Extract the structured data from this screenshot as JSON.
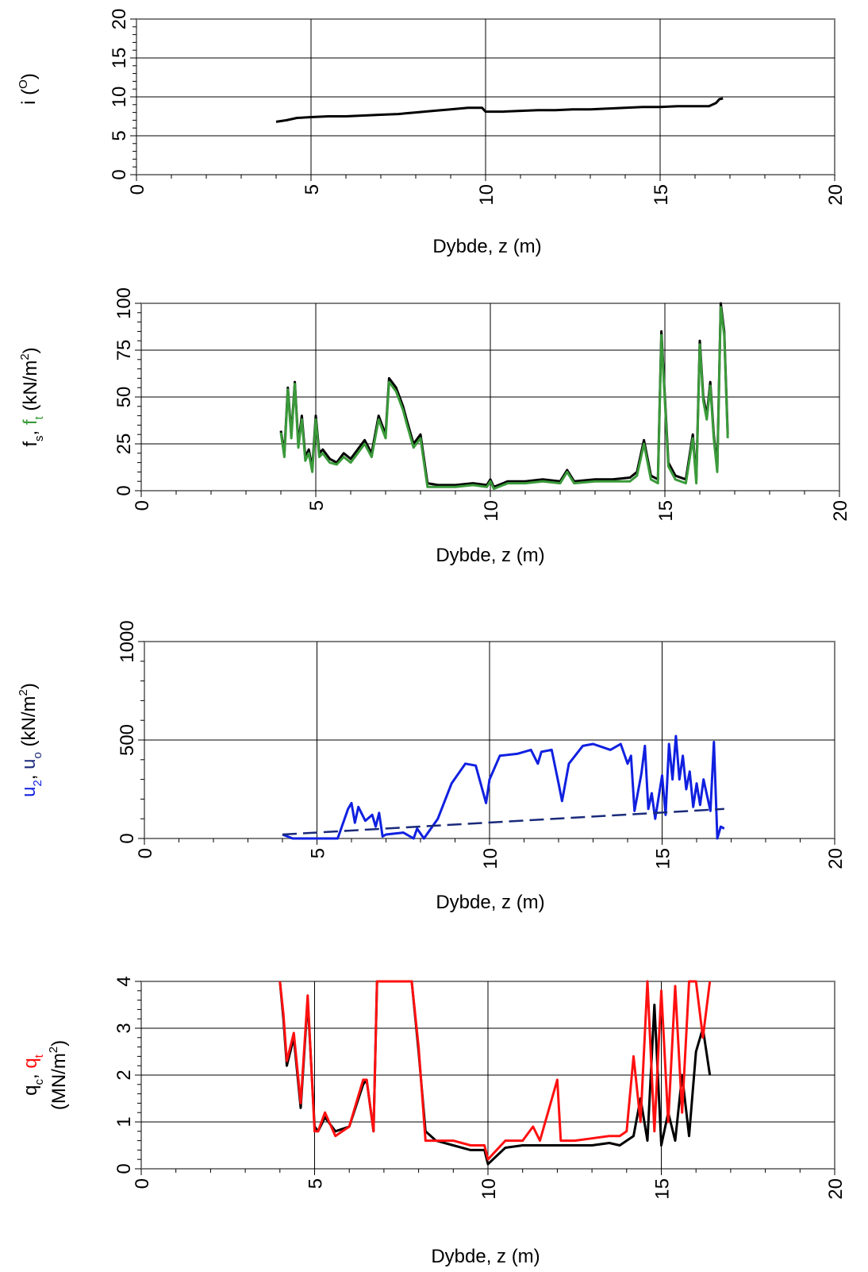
{
  "colors": {
    "black": "#000000",
    "green": "#3a9a3a",
    "blue": "#1020e0",
    "navy": "#1a2a7a",
    "red": "#ff1010",
    "grid": "#000000",
    "frame": "#808080"
  },
  "chart_data": [
    {
      "type": "line",
      "ylabel": "i (O)",
      "ylabel_parts": {
        "a": "i",
        "sup": "O"
      },
      "xlabel": "Dybde, z (m)",
      "xlim": [
        0,
        20
      ],
      "ylim": [
        0,
        20
      ],
      "x_ticks": [
        "0",
        "5",
        "10",
        "15",
        "20"
      ],
      "y_ticks": [
        "0",
        "5",
        "10",
        "15",
        "20"
      ],
      "grid": true,
      "series": [
        {
          "color": "#000000",
          "x": [
            4.0,
            4.3,
            4.6,
            5.0,
            5.5,
            6.0,
            6.5,
            7.0,
            7.5,
            8.0,
            8.5,
            9.0,
            9.5,
            9.9,
            10.0,
            10.5,
            11.0,
            11.5,
            12.0,
            12.5,
            13.0,
            13.5,
            14.0,
            14.5,
            15.0,
            15.5,
            16.0,
            16.4,
            16.6,
            16.7,
            16.8
          ],
          "y": [
            6.8,
            7.0,
            7.3,
            7.4,
            7.5,
            7.5,
            7.6,
            7.7,
            7.8,
            8.0,
            8.2,
            8.4,
            8.6,
            8.6,
            8.1,
            8.1,
            8.2,
            8.3,
            8.3,
            8.4,
            8.4,
            8.5,
            8.6,
            8.7,
            8.7,
            8.8,
            8.8,
            8.8,
            9.2,
            9.7,
            9.8
          ]
        }
      ]
    },
    {
      "type": "line",
      "ylabel": "fs, ft (kN/m2)",
      "ylabel_parts": {
        "a": "f",
        "a_sub": "s",
        "b": "f",
        "b_sub": "t",
        "unit": "(kN/m",
        "unit_sup": "2",
        "unit_end": ")"
      },
      "xlabel": "Dybde, z (m)",
      "xlim": [
        0,
        20
      ],
      "ylim": [
        0,
        100
      ],
      "x_ticks": [
        "0",
        "5",
        "10",
        "15",
        "20"
      ],
      "y_ticks": [
        "0",
        "25",
        "50",
        "75",
        "100"
      ],
      "grid": true,
      "series": [
        {
          "name": "fs",
          "color": "#000000",
          "x": [
            4.0,
            4.1,
            4.2,
            4.3,
            4.4,
            4.5,
            4.6,
            4.7,
            4.8,
            4.9,
            5.0,
            5.1,
            5.2,
            5.4,
            5.6,
            5.8,
            6.0,
            6.2,
            6.4,
            6.6,
            6.8,
            7.0,
            7.1,
            7.3,
            7.5,
            7.6,
            7.8,
            8.0,
            8.2,
            8.5,
            9.0,
            9.5,
            9.9,
            10.0,
            10.1,
            10.5,
            11.0,
            11.5,
            12.0,
            12.2,
            12.4,
            13.0,
            13.5,
            14.0,
            14.2,
            14.4,
            14.6,
            14.8,
            14.9,
            15.1,
            15.3,
            15.6,
            15.8,
            15.9,
            16.0,
            16.1,
            16.2,
            16.3,
            16.4,
            16.5,
            16.6,
            16.7,
            16.8
          ],
          "y": [
            32,
            20,
            55,
            30,
            58,
            25,
            40,
            18,
            22,
            12,
            40,
            20,
            22,
            17,
            15,
            20,
            17,
            22,
            27,
            20,
            40,
            30,
            60,
            55,
            45,
            38,
            25,
            30,
            4,
            3,
            3,
            4,
            3,
            6,
            2,
            5,
            5,
            6,
            5,
            11,
            5,
            6,
            6,
            7,
            10,
            27,
            8,
            6,
            85,
            15,
            8,
            6,
            30,
            6,
            80,
            50,
            40,
            58,
            30,
            12,
            100,
            85,
            30
          ]
        },
        {
          "name": "ft",
          "color": "#3a9a3a",
          "x": [
            4.0,
            4.1,
            4.2,
            4.3,
            4.4,
            4.5,
            4.6,
            4.7,
            4.8,
            4.9,
            5.0,
            5.1,
            5.2,
            5.4,
            5.6,
            5.8,
            6.0,
            6.2,
            6.4,
            6.6,
            6.8,
            7.0,
            7.1,
            7.3,
            7.5,
            7.6,
            7.8,
            8.0,
            8.2,
            8.5,
            9.0,
            9.5,
            9.9,
            10.0,
            10.1,
            10.5,
            11.0,
            11.5,
            12.0,
            12.2,
            12.4,
            13.0,
            13.5,
            14.0,
            14.2,
            14.4,
            14.6,
            14.8,
            14.9,
            15.1,
            15.3,
            15.6,
            15.8,
            15.9,
            16.0,
            16.1,
            16.2,
            16.3,
            16.4,
            16.5,
            16.6,
            16.7,
            16.8
          ],
          "y": [
            31,
            18,
            54,
            28,
            57,
            23,
            38,
            16,
            20,
            10,
            38,
            18,
            20,
            15,
            14,
            18,
            15,
            20,
            25,
            18,
            38,
            28,
            58,
            53,
            43,
            36,
            23,
            28,
            2,
            2,
            2,
            3,
            2,
            5,
            1,
            4,
            4,
            5,
            4,
            10,
            4,
            5,
            5,
            5,
            8,
            25,
            6,
            4,
            83,
            13,
            6,
            4,
            28,
            4,
            78,
            48,
            38,
            56,
            28,
            10,
            98,
            83,
            28
          ]
        }
      ]
    },
    {
      "type": "line",
      "ylabel": "u2, uo (kN/m2)",
      "ylabel_parts": {
        "a": "u",
        "a_sub": "2",
        "b": "u",
        "b_sub": "o",
        "unit": "(kN/m",
        "unit_sup": "2",
        "unit_end": ")"
      },
      "xlabel": "Dybde, z (m)",
      "xlim": [
        0,
        20
      ],
      "ylim": [
        0,
        1000
      ],
      "x_ticks": [
        "0",
        "5",
        "10",
        "15",
        "20"
      ],
      "y_ticks": [
        "0",
        "500",
        "1000"
      ],
      "grid": true,
      "series": [
        {
          "name": "u2",
          "color": "#1020e0",
          "x": [
            4.0,
            4.3,
            5.6,
            5.9,
            6.0,
            6.1,
            6.2,
            6.4,
            6.6,
            6.7,
            6.8,
            6.9,
            7.0,
            7.5,
            7.8,
            7.9,
            8.1,
            8.5,
            8.9,
            9.3,
            9.6,
            9.9,
            10.0,
            10.3,
            10.8,
            11.2,
            11.4,
            11.5,
            11.8,
            12.0,
            12.1,
            12.3,
            12.7,
            13.0,
            13.5,
            13.8,
            14.0,
            14.1,
            14.2,
            14.4,
            14.5,
            14.6,
            14.7,
            14.8,
            15.0,
            15.1,
            15.2,
            15.3,
            15.4,
            15.5,
            15.6,
            15.7,
            15.8,
            15.9,
            16.0,
            16.1,
            16.2,
            16.4,
            16.5,
            16.6,
            16.7,
            16.8
          ],
          "y": [
            20,
            0,
            0,
            150,
            180,
            80,
            160,
            90,
            120,
            60,
            130,
            10,
            20,
            30,
            0,
            50,
            0,
            100,
            280,
            380,
            370,
            180,
            300,
            420,
            430,
            450,
            380,
            440,
            450,
            280,
            190,
            380,
            470,
            480,
            450,
            480,
            380,
            420,
            140,
            330,
            470,
            150,
            230,
            100,
            320,
            120,
            480,
            300,
            520,
            300,
            420,
            250,
            340,
            160,
            280,
            170,
            300,
            140,
            490,
            0,
            60,
            50
          ]
        },
        {
          "name": "uo",
          "color": "#1a2a7a",
          "dashed": true,
          "x": [
            4.0,
            16.8
          ],
          "y": [
            20,
            150
          ]
        }
      ]
    },
    {
      "type": "line",
      "ylabel": "qc, qt (MN/m2)",
      "ylabel_parts": {
        "a": "q",
        "a_sub": "c",
        "b": "q",
        "b_sub": "t",
        "unit": "(MN/m",
        "unit_sup": "2",
        "unit_end": ")"
      },
      "xlabel": "Dybde, z (m)",
      "xlim": [
        0,
        20
      ],
      "ylim": [
        0,
        4
      ],
      "x_ticks": [
        "0",
        "5",
        "10",
        "15",
        "20"
      ],
      "y_ticks": [
        "0",
        "1",
        "2",
        "3",
        "4"
      ],
      "grid": true,
      "series": [
        {
          "name": "qc",
          "color": "#000000",
          "x": [
            4.0,
            4.1,
            4.2,
            4.4,
            4.6,
            4.8,
            5.0,
            5.1,
            5.3,
            5.6,
            6.0,
            6.4,
            6.5,
            6.7,
            6.8,
            6.9,
            7.8,
            8.0,
            8.2,
            8.5,
            9.0,
            9.5,
            9.9,
            10.0,
            10.5,
            11.0,
            11.5,
            12.0,
            12.5,
            13.0,
            13.5,
            13.8,
            14.0,
            14.2,
            14.4,
            14.6,
            14.8,
            15.0,
            15.2,
            15.4,
            15.6,
            15.8,
            16.0,
            16.2,
            16.4
          ],
          "y": [
            4.0,
            3.2,
            2.2,
            2.8,
            1.3,
            3.6,
            0.9,
            0.8,
            1.1,
            0.8,
            0.9,
            1.8,
            1.9,
            0.8,
            4.0,
            4.0,
            4.0,
            2.5,
            0.8,
            0.6,
            0.5,
            0.4,
            0.4,
            0.1,
            0.45,
            0.5,
            0.5,
            0.5,
            0.5,
            0.5,
            0.55,
            0.5,
            0.6,
            0.7,
            1.5,
            0.6,
            3.5,
            0.5,
            1.2,
            0.6,
            2.0,
            0.7,
            2.5,
            3.0,
            2.0
          ]
        },
        {
          "name": "qt",
          "color": "#ff1010",
          "x": [
            4.0,
            4.1,
            4.2,
            4.4,
            4.6,
            4.8,
            5.0,
            5.1,
            5.3,
            5.6,
            6.0,
            6.4,
            6.5,
            6.7,
            6.8,
            6.9,
            7.8,
            8.0,
            8.2,
            8.5,
            9.0,
            9.5,
            9.9,
            10.0,
            10.5,
            11.0,
            11.3,
            11.5,
            12.0,
            12.1,
            12.5,
            13.0,
            13.5,
            13.8,
            14.0,
            14.2,
            14.4,
            14.6,
            14.8,
            15.0,
            15.2,
            15.4,
            15.6,
            15.8,
            16.0,
            16.2,
            16.4
          ],
          "y": [
            4.0,
            3.3,
            2.3,
            2.9,
            1.4,
            3.7,
            0.8,
            0.8,
            1.2,
            0.7,
            0.9,
            1.9,
            1.9,
            0.8,
            4.0,
            4.0,
            4.0,
            2.6,
            0.6,
            0.6,
            0.6,
            0.5,
            0.5,
            0.2,
            0.6,
            0.6,
            0.9,
            0.6,
            1.9,
            0.6,
            0.6,
            0.65,
            0.7,
            0.7,
            0.8,
            2.4,
            1.0,
            4.0,
            0.8,
            3.8,
            1.0,
            3.9,
            1.2,
            4.0,
            4.0,
            2.8,
            4.0
          ]
        }
      ]
    }
  ]
}
